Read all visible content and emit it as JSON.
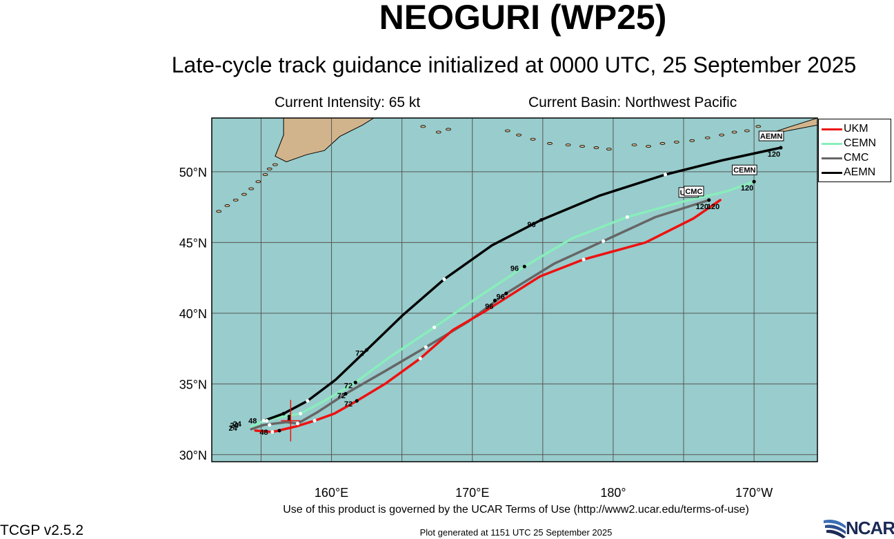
{
  "header": {
    "title": "NEOGURI (WP25)",
    "subtitle": "Late-cycle track guidance initialized at 0000 UTC, 25 September 2025",
    "intensity": "Current Intensity: 65 kt",
    "basin": "Current Basin: Northwest Pacific"
  },
  "footer": {
    "terms": "Use of this product is governed by the UCAR Terms of Use (http://www2.ucar.edu/terms-of-use)",
    "version": "TCGP v2.5.2",
    "generated": "Plot generated at 1151 UTC   25 September 2025",
    "logo_text": "NCAR"
  },
  "colors": {
    "ocean": "#99cccc",
    "land": "#d2b48c",
    "grid": "#555555",
    "UKM": "#ee1111",
    "CEMN": "#88eebb",
    "CMC": "#666666",
    "AEMN": "#000000"
  },
  "map_data": {
    "lon_range": [
      151.5,
      194.5
    ],
    "lat_range": [
      29.5,
      53.8
    ],
    "lon_grid": [
      155,
      160,
      165,
      170,
      175,
      180,
      185,
      190
    ],
    "lat_grid": [
      30,
      35,
      40,
      45,
      50
    ],
    "lon_labels": [
      {
        "lon": 160,
        "label": "160°E"
      },
      {
        "lon": 170,
        "label": "170°E"
      },
      {
        "lon": 180,
        "label": "180°"
      },
      {
        "lon": 190,
        "label": "170°W"
      }
    ],
    "lat_labels": [
      {
        "lat": 30,
        "label": "30°N"
      },
      {
        "lat": 35,
        "label": "35°N"
      },
      {
        "lat": 40,
        "label": "40°N"
      },
      {
        "lat": 45,
        "label": "45°N"
      },
      {
        "lat": 50,
        "label": "50°N"
      }
    ],
    "current_position": {
      "lon": 157.1,
      "lat": 32.4
    },
    "tracks": [
      {
        "name": "UKM",
        "end_label": "UKM",
        "end_hour": "120",
        "points": [
          [
            154.6,
            31.7
          ],
          [
            155.8,
            31.6
          ],
          [
            157.5,
            32.0
          ],
          [
            158.8,
            32.4
          ],
          [
            160.2,
            32.9
          ],
          [
            161.8,
            33.8
          ],
          [
            163.8,
            35.0
          ],
          [
            166.3,
            36.8
          ],
          [
            168.6,
            38.8
          ],
          [
            171.0,
            40.2
          ],
          [
            174.8,
            42.6
          ],
          [
            177.9,
            43.8
          ],
          [
            182.3,
            45.0
          ],
          [
            185.7,
            46.7
          ],
          [
            187.6,
            48.0
          ]
        ],
        "labels": [
          {
            "text": "24",
            "lon": 153.0,
            "lat": 31.7
          },
          {
            "text": "48",
            "lon": 155.2,
            "lat": 31.4
          },
          {
            "text": "72",
            "lon": 161.2,
            "lat": 33.4
          },
          {
            "text": "96",
            "lon": 171.2,
            "lat": 40.3
          }
        ],
        "white_dots": [
          [
            155.8,
            31.6
          ],
          [
            158.8,
            32.4
          ],
          [
            166.3,
            36.8
          ],
          [
            177.9,
            43.8
          ]
        ],
        "black_dots": [
          [
            156.3,
            31.7
          ],
          [
            161.8,
            33.8
          ],
          [
            171.6,
            40.9
          ]
        ]
      },
      {
        "name": "CEMN",
        "end_label": "CEMN",
        "end_hour": "120",
        "points": [
          [
            154.3,
            32.0
          ],
          [
            155.0,
            32.3
          ],
          [
            156.0,
            32.6
          ],
          [
            157.8,
            32.9
          ],
          [
            159.5,
            33.8
          ],
          [
            161.7,
            35.1
          ],
          [
            164.0,
            36.8
          ],
          [
            167.3,
            39.0
          ],
          [
            170.5,
            41.2
          ],
          [
            173.7,
            43.3
          ],
          [
            177.1,
            45.3
          ],
          [
            181.0,
            46.8
          ],
          [
            185.0,
            47.9
          ],
          [
            188.0,
            48.6
          ],
          [
            190.0,
            49.3
          ]
        ],
        "labels": [
          {
            "text": "24",
            "lon": 153.3,
            "lat": 32.0
          },
          {
            "text": "48",
            "lon": 154.4,
            "lat": 32.2
          },
          {
            "text": "72",
            "lon": 161.2,
            "lat": 34.7
          },
          {
            "text": "96",
            "lon": 173.0,
            "lat": 43.0
          }
        ],
        "white_dots": [
          [
            155.4,
            32.4
          ],
          [
            157.8,
            32.9
          ],
          [
            167.3,
            39.0
          ],
          [
            181.0,
            46.8
          ]
        ],
        "black_dots": [
          [
            157.0,
            32.7
          ],
          [
            161.7,
            35.1
          ],
          [
            173.7,
            43.3
          ],
          [
            190.0,
            49.3
          ]
        ]
      },
      {
        "name": "CMC",
        "end_label": "CMC",
        "end_hour": "120",
        "points": [
          [
            154.3,
            31.8
          ],
          [
            155.2,
            32.1
          ],
          [
            156.8,
            32.3
          ],
          [
            157.6,
            32.2
          ],
          [
            159.0,
            33.0
          ],
          [
            161.0,
            34.3
          ],
          [
            163.8,
            35.9
          ],
          [
            166.7,
            37.6
          ],
          [
            169.7,
            39.4
          ],
          [
            172.4,
            41.4
          ],
          [
            175.8,
            43.5
          ],
          [
            179.3,
            45.1
          ],
          [
            183.0,
            46.8
          ],
          [
            186.8,
            48.0
          ]
        ],
        "labels": [
          {
            "text": "24",
            "lon": 153.1,
            "lat": 31.9
          },
          {
            "text": "72",
            "lon": 160.7,
            "lat": 34.0
          },
          {
            "text": "96",
            "lon": 172.0,
            "lat": 41.0
          }
        ],
        "white_dots": [
          [
            155.6,
            32.1
          ],
          [
            157.6,
            32.2
          ],
          [
            166.7,
            37.6
          ],
          [
            179.3,
            45.1
          ]
        ],
        "black_dots": [
          [
            157.0,
            32.5
          ],
          [
            161.0,
            34.3
          ],
          [
            172.4,
            41.4
          ],
          [
            186.8,
            48.0
          ]
        ]
      },
      {
        "name": "AEMN",
        "end_label": "AEMN",
        "end_hour": "120",
        "points": [
          [
            155.2,
            32.4
          ],
          [
            156.6,
            32.9
          ],
          [
            158.3,
            33.8
          ],
          [
            160.3,
            35.3
          ],
          [
            162.5,
            37.4
          ],
          [
            165.1,
            39.9
          ],
          [
            168.0,
            42.4
          ],
          [
            171.4,
            44.8
          ],
          [
            174.9,
            46.6
          ],
          [
            179.0,
            48.3
          ],
          [
            183.7,
            49.8
          ],
          [
            187.7,
            50.8
          ],
          [
            191.9,
            51.7
          ]
        ],
        "labels": [
          {
            "text": "72",
            "lon": 162.0,
            "lat": 37.0
          },
          {
            "text": "96",
            "lon": 174.2,
            "lat": 46.1
          }
        ],
        "white_dots": [
          [
            155.2,
            32.4
          ],
          [
            158.3,
            33.8
          ],
          [
            168.0,
            42.4
          ],
          [
            183.7,
            49.8
          ]
        ],
        "black_dots": [
          [
            156.6,
            32.9
          ],
          [
            162.5,
            37.4
          ],
          [
            174.9,
            46.6
          ],
          [
            191.9,
            51.7
          ]
        ]
      }
    ]
  }
}
